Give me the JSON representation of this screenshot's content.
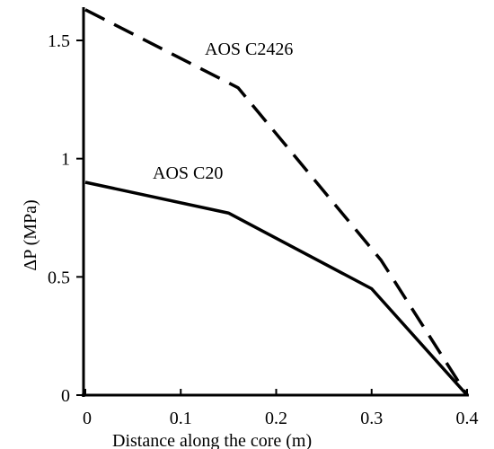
{
  "chart_data": {
    "type": "line",
    "title": "",
    "xlabel": "Distance along the core (m)",
    "ylabel": "ΔP (MPa)",
    "xlim": [
      0,
      0.4
    ],
    "ylim": [
      0,
      1.7
    ],
    "grid": false,
    "legend": "inline labels",
    "x_ticks": [
      {
        "value": 0,
        "label": "0"
      },
      {
        "value": 0.1,
        "label": "0.1"
      },
      {
        "value": 0.2,
        "label": "0.2"
      },
      {
        "value": 0.3,
        "label": "0.3"
      },
      {
        "value": 0.4,
        "label": "0.4"
      }
    ],
    "y_ticks": [
      {
        "value": 0,
        "label": "0"
      },
      {
        "value": 0.5,
        "label": "0.5"
      },
      {
        "value": 1,
        "label": "1"
      },
      {
        "value": 1.5,
        "label": "1.5"
      }
    ],
    "series": [
      {
        "name": "AOS C2426",
        "style": "dashed",
        "color": "#000000",
        "points": [
          [
            0,
            1.63
          ],
          [
            0.16,
            1.3
          ],
          [
            0.31,
            0.57
          ],
          [
            0.4,
            0
          ]
        ]
      },
      {
        "name": "AOS C20",
        "style": "solid",
        "color": "#000000",
        "points": [
          [
            0,
            0.9
          ],
          [
            0.15,
            0.77
          ],
          [
            0.3,
            0.45
          ],
          [
            0.4,
            0
          ]
        ]
      }
    ]
  }
}
